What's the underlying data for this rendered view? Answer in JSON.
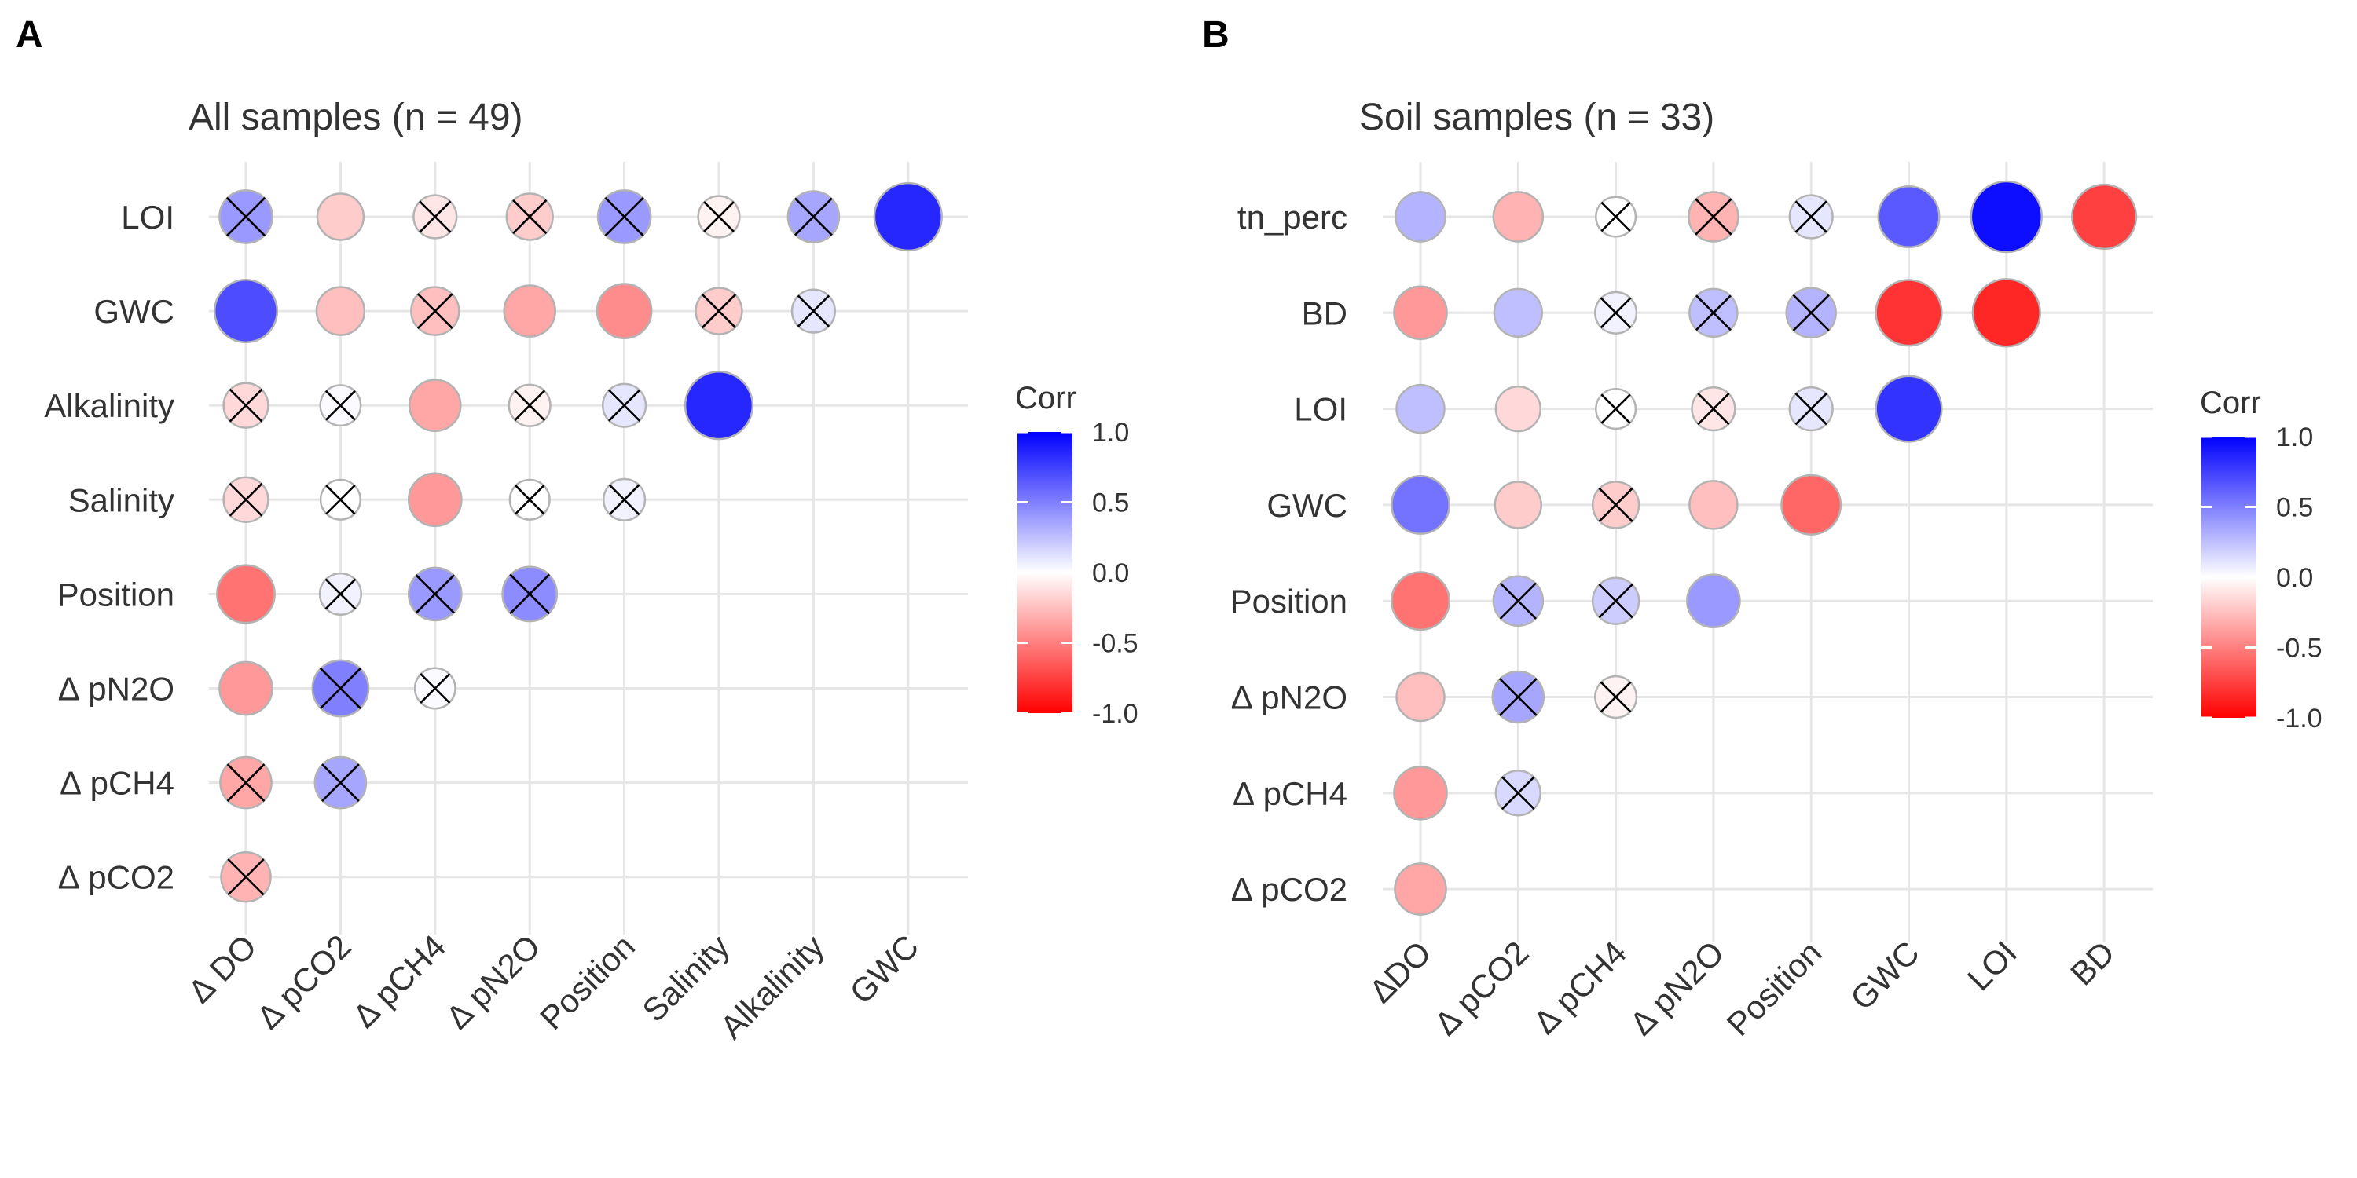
{
  "chart_data": [
    {
      "type": "heatmap",
      "panel_label": "A",
      "title": "All samples (n = 49)",
      "x_labels": [
        "∆ DO",
        "∆ pCO2",
        "∆ pCH4",
        "∆ pN2O",
        "Position",
        "Salinity",
        "Alkalinity",
        "GWC"
      ],
      "y_labels": [
        "LOI",
        "GWC",
        "Alkalinity",
        "Salinity",
        "Position",
        "∆ pN2O",
        "∆ pCH4",
        "∆ pCO2"
      ],
      "cells": [
        {
          "row": "LOI",
          "col": "∆ DO",
          "value": 0.4,
          "crossed": true
        },
        {
          "row": "LOI",
          "col": "∆ pCO2",
          "value": -0.2,
          "crossed": false
        },
        {
          "row": "LOI",
          "col": "∆ pCH4",
          "value": -0.1,
          "crossed": true
        },
        {
          "row": "LOI",
          "col": "∆ pN2O",
          "value": -0.2,
          "crossed": true
        },
        {
          "row": "LOI",
          "col": "Position",
          "value": 0.4,
          "crossed": true
        },
        {
          "row": "LOI",
          "col": "Salinity",
          "value": -0.05,
          "crossed": true
        },
        {
          "row": "LOI",
          "col": "Alkalinity",
          "value": 0.35,
          "crossed": true
        },
        {
          "row": "LOI",
          "col": "GWC",
          "value": 0.85,
          "crossed": false
        },
        {
          "row": "GWC",
          "col": "∆ DO",
          "value": 0.7,
          "crossed": false
        },
        {
          "row": "GWC",
          "col": "∆ pCO2",
          "value": -0.25,
          "crossed": false
        },
        {
          "row": "GWC",
          "col": "∆ pCH4",
          "value": -0.25,
          "crossed": true
        },
        {
          "row": "GWC",
          "col": "∆ pN2O",
          "value": -0.35,
          "crossed": false
        },
        {
          "row": "GWC",
          "col": "Position",
          "value": -0.45,
          "crossed": false
        },
        {
          "row": "GWC",
          "col": "Salinity",
          "value": -0.2,
          "crossed": true
        },
        {
          "row": "GWC",
          "col": "Alkalinity",
          "value": 0.1,
          "crossed": true
        },
        {
          "row": "Alkalinity",
          "col": "∆ DO",
          "value": -0.15,
          "crossed": true
        },
        {
          "row": "Alkalinity",
          "col": "∆ pCO2",
          "value": 0.02,
          "crossed": true
        },
        {
          "row": "Alkalinity",
          "col": "∆ pCH4",
          "value": -0.35,
          "crossed": false
        },
        {
          "row": "Alkalinity",
          "col": "∆ pN2O",
          "value": -0.05,
          "crossed": true
        },
        {
          "row": "Alkalinity",
          "col": "Position",
          "value": 0.1,
          "crossed": true
        },
        {
          "row": "Alkalinity",
          "col": "Salinity",
          "value": 0.85,
          "crossed": false
        },
        {
          "row": "Salinity",
          "col": "∆ DO",
          "value": -0.15,
          "crossed": true
        },
        {
          "row": "Salinity",
          "col": "∆ pCO2",
          "value": 0.0,
          "crossed": true
        },
        {
          "row": "Salinity",
          "col": "∆ pCH4",
          "value": -0.4,
          "crossed": false
        },
        {
          "row": "Salinity",
          "col": "∆ pN2O",
          "value": 0.0,
          "crossed": true
        },
        {
          "row": "Salinity",
          "col": "Position",
          "value": 0.05,
          "crossed": true
        },
        {
          "row": "Position",
          "col": "∆ DO",
          "value": -0.55,
          "crossed": false
        },
        {
          "row": "Position",
          "col": "∆ pCO2",
          "value": 0.05,
          "crossed": true
        },
        {
          "row": "Position",
          "col": "∆ pCH4",
          "value": 0.4,
          "crossed": true
        },
        {
          "row": "Position",
          "col": "∆ pN2O",
          "value": 0.45,
          "crossed": true
        },
        {
          "row": "∆ pN2O",
          "col": "∆ DO",
          "value": -0.4,
          "crossed": false
        },
        {
          "row": "∆ pN2O",
          "col": "∆ pCO2",
          "value": 0.5,
          "crossed": true
        },
        {
          "row": "∆ pN2O",
          "col": "∆ pCH4",
          "value": 0.02,
          "crossed": true
        },
        {
          "row": "∆ pCH4",
          "col": "∆ DO",
          "value": -0.35,
          "crossed": true
        },
        {
          "row": "∆ pCH4",
          "col": "∆ pCO2",
          "value": 0.35,
          "crossed": true
        },
        {
          "row": "∆ pCO2",
          "col": "∆ DO",
          "value": -0.3,
          "crossed": true
        }
      ],
      "legend": {
        "title": "Corr",
        "ticks": [
          1.0,
          0.5,
          0.0,
          -0.5,
          -1.0
        ],
        "tick_labels": [
          "1.0",
          "0.5",
          "0.0",
          "-0.5",
          "-1.0"
        ],
        "position": "right"
      },
      "color_scale": {
        "low": "#ff0000",
        "mid": "#ffffff",
        "high": "#0000ff"
      }
    },
    {
      "type": "heatmap",
      "panel_label": "B",
      "title": "Soil samples (n = 33)",
      "x_labels": [
        "∆DO",
        "∆ pCO2",
        "∆ pCH4",
        "∆ pN2O",
        "Position",
        "GWC",
        "LOI",
        "BD"
      ],
      "y_labels": [
        "tn_perc",
        "BD",
        "LOI",
        "GWC",
        "Position",
        "∆ pN2O",
        "∆ pCH4",
        "∆ pCO2"
      ],
      "cells": [
        {
          "row": "tn_perc",
          "col": "∆DO",
          "value": 0.3,
          "crossed": false
        },
        {
          "row": "tn_perc",
          "col": "∆ pCO2",
          "value": -0.3,
          "crossed": false
        },
        {
          "row": "tn_perc",
          "col": "∆ pCH4",
          "value": 0.0,
          "crossed": true
        },
        {
          "row": "tn_perc",
          "col": "∆ pN2O",
          "value": -0.3,
          "crossed": true
        },
        {
          "row": "tn_perc",
          "col": "Position",
          "value": 0.1,
          "crossed": true
        },
        {
          "row": "tn_perc",
          "col": "GWC",
          "value": 0.65,
          "crossed": false
        },
        {
          "row": "tn_perc",
          "col": "LOI",
          "value": 0.95,
          "crossed": false
        },
        {
          "row": "tn_perc",
          "col": "BD",
          "value": -0.75,
          "crossed": false
        },
        {
          "row": "BD",
          "col": "∆DO",
          "value": -0.4,
          "crossed": false
        },
        {
          "row": "BD",
          "col": "∆ pCO2",
          "value": 0.25,
          "crossed": false
        },
        {
          "row": "BD",
          "col": "∆ pCH4",
          "value": 0.05,
          "crossed": true
        },
        {
          "row": "BD",
          "col": "∆ pN2O",
          "value": 0.25,
          "crossed": true
        },
        {
          "row": "BD",
          "col": "Position",
          "value": 0.3,
          "crossed": true
        },
        {
          "row": "BD",
          "col": "GWC",
          "value": -0.8,
          "crossed": false
        },
        {
          "row": "BD",
          "col": "LOI",
          "value": -0.85,
          "crossed": false
        },
        {
          "row": "LOI",
          "col": "∆DO",
          "value": 0.25,
          "crossed": false
        },
        {
          "row": "LOI",
          "col": "∆ pCO2",
          "value": -0.15,
          "crossed": false
        },
        {
          "row": "LOI",
          "col": "∆ pCH4",
          "value": 0.0,
          "crossed": true
        },
        {
          "row": "LOI",
          "col": "∆ pN2O",
          "value": -0.1,
          "crossed": true
        },
        {
          "row": "LOI",
          "col": "Position",
          "value": 0.1,
          "crossed": true
        },
        {
          "row": "LOI",
          "col": "GWC",
          "value": 0.8,
          "crossed": false
        },
        {
          "row": "GWC",
          "col": "∆DO",
          "value": 0.55,
          "crossed": false
        },
        {
          "row": "GWC",
          "col": "∆ pCO2",
          "value": -0.2,
          "crossed": false
        },
        {
          "row": "GWC",
          "col": "∆ pCH4",
          "value": -0.2,
          "crossed": true
        },
        {
          "row": "GWC",
          "col": "∆ pN2O",
          "value": -0.25,
          "crossed": false
        },
        {
          "row": "GWC",
          "col": "Position",
          "value": -0.6,
          "crossed": false
        },
        {
          "row": "Position",
          "col": "∆DO",
          "value": -0.55,
          "crossed": false
        },
        {
          "row": "Position",
          "col": "∆ pCO2",
          "value": 0.3,
          "crossed": true
        },
        {
          "row": "Position",
          "col": "∆ pCH4",
          "value": 0.2,
          "crossed": true
        },
        {
          "row": "Position",
          "col": "∆ pN2O",
          "value": 0.4,
          "crossed": false
        },
        {
          "row": "∆ pN2O",
          "col": "∆DO",
          "value": -0.25,
          "crossed": false
        },
        {
          "row": "∆ pN2O",
          "col": "∆ pCO2",
          "value": 0.35,
          "crossed": true
        },
        {
          "row": "∆ pN2O",
          "col": "∆ pCH4",
          "value": -0.05,
          "crossed": true
        },
        {
          "row": "∆ pCH4",
          "col": "∆DO",
          "value": -0.4,
          "crossed": false
        },
        {
          "row": "∆ pCH4",
          "col": "∆ pCO2",
          "value": 0.15,
          "crossed": true
        },
        {
          "row": "∆ pCO2",
          "col": "∆DO",
          "value": -0.35,
          "crossed": false
        }
      ],
      "legend": {
        "title": "Corr",
        "ticks": [
          1.0,
          0.5,
          0.0,
          -0.5,
          -1.0
        ],
        "tick_labels": [
          "1.0",
          "0.5",
          "0.0",
          "-0.5",
          "-1.0"
        ],
        "position": "right"
      },
      "color_scale": {
        "low": "#ff0000",
        "mid": "#ffffff",
        "high": "#0000ff"
      }
    }
  ]
}
